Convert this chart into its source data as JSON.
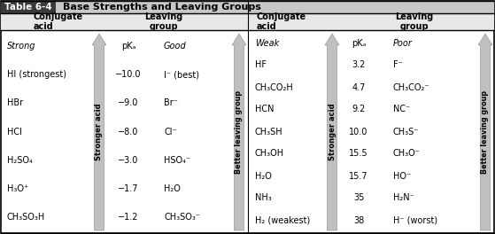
{
  "title": "Table 6-4",
  "title_text": "Base Strengths and Leaving Groups",
  "left_section": {
    "strength_label": "Strong",
    "good_label": "Good",
    "rows": [
      {
        "acid": "HI (strongest)",
        "pka": "−10.0",
        "leaving": "I⁻ (best)"
      },
      {
        "acid": "HBr",
        "pka": "−9.0",
        "leaving": "Br⁻"
      },
      {
        "acid": "HCl",
        "pka": "−8.0",
        "leaving": "Cl⁻"
      },
      {
        "acid": "H₂SO₄",
        "pka": "−3.0",
        "leaving": "HSO₄⁻"
      },
      {
        "acid": "H₃O⁺",
        "pka": "−1.7",
        "leaving": "H₂O"
      },
      {
        "acid": "CH₃SO₃H",
        "pka": "−1.2",
        "leaving": "CH₃SO₃⁻"
      }
    ],
    "stronger_acid_label": "Stronger acid",
    "better_leaving_label": "Better leaving group"
  },
  "right_section": {
    "strength_label": "Weak",
    "poor_label": "Poor",
    "rows": [
      {
        "acid": "HF",
        "pka": "3.2",
        "leaving": "F⁻"
      },
      {
        "acid": "CH₃CO₂H",
        "pka": "4.7",
        "leaving": "CH₃CO₂⁻"
      },
      {
        "acid": "HCN",
        "pka": "9.2",
        "leaving": "NC⁻"
      },
      {
        "acid": "CH₃SH",
        "pka": "10.0",
        "leaving": "CH₃S⁻"
      },
      {
        "acid": "CH₃OH",
        "pka": "15.5",
        "leaving": "CH₃O⁻"
      },
      {
        "acid": "H₂O",
        "pka": "15.7",
        "leaving": "HO⁻"
      },
      {
        "acid": "NH₃",
        "pka": "35",
        "leaving": "H₂N⁻"
      },
      {
        "acid": "H₂ (weakest)",
        "pka": "38",
        "leaving": "H⁻ (worst)"
      }
    ],
    "stronger_acid_label": "Stronger acid",
    "better_leaving_label": "Better leaving group"
  }
}
